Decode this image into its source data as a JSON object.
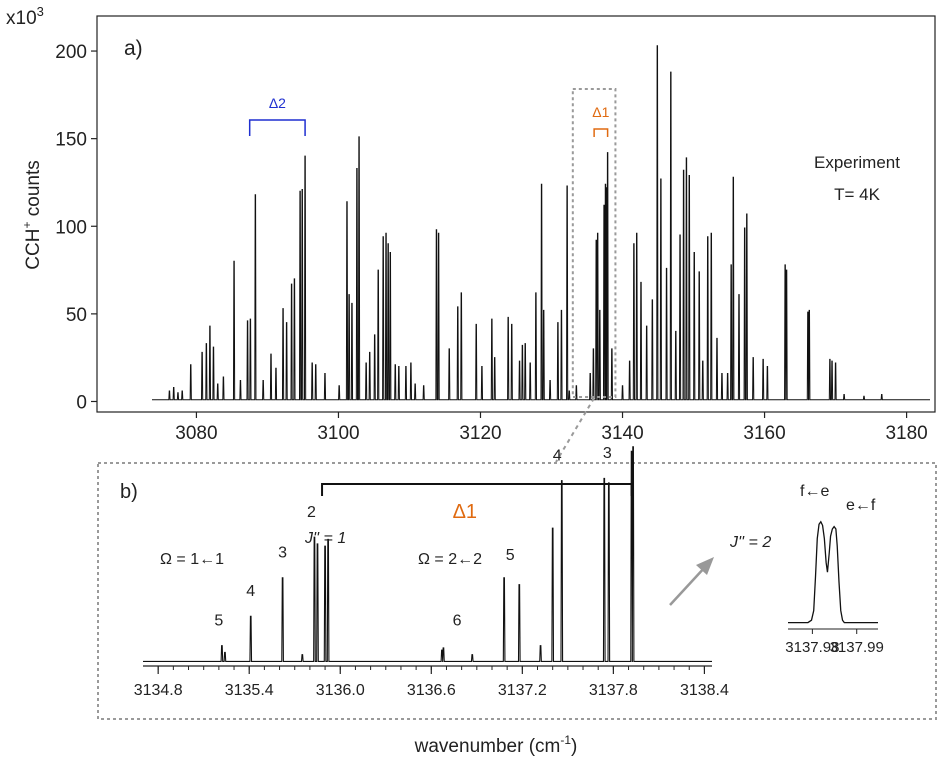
{
  "chart_data": [
    {
      "type": "line",
      "panel_label": "a)",
      "exponent_label": "x10",
      "exponent_sup": "3",
      "ylabel_main": "CCH",
      "ylabel_sup": "+",
      "ylabel_rest": " counts",
      "annotation_line1": "Experiment",
      "annotation_line2": "T= 4K",
      "delta2_label": "Δ2",
      "delta1_label": "Δ1",
      "delta2_range": [
        3087.5,
        3095.3
      ],
      "delta1_range": [
        3136.0,
        3137.9
      ],
      "zoom_box_range": [
        3133.0,
        3139.0
      ],
      "xlim": [
        3066,
        3184
      ],
      "ylim": [
        -6,
        220
      ],
      "xticks": [
        3080,
        3100,
        3120,
        3140,
        3160,
        3180
      ],
      "yticks": [
        0,
        50,
        100,
        150,
        200
      ],
      "baseline": 1,
      "peaks": [
        [
          3076.2,
          6
        ],
        [
          3076.8,
          8
        ],
        [
          3077.4,
          5
        ],
        [
          3078.0,
          6
        ],
        [
          3079.2,
          21
        ],
        [
          3080.8,
          28
        ],
        [
          3081.4,
          33
        ],
        [
          3081.9,
          43
        ],
        [
          3082.4,
          31
        ],
        [
          3083.0,
          10
        ],
        [
          3083.8,
          14
        ],
        [
          3085.3,
          80
        ],
        [
          3086.2,
          12
        ],
        [
          3087.2,
          46
        ],
        [
          3087.6,
          47
        ],
        [
          3088.3,
          118
        ],
        [
          3089.4,
          12
        ],
        [
          3090.5,
          27
        ],
        [
          3091.2,
          19
        ],
        [
          3092.2,
          53
        ],
        [
          3092.7,
          45
        ],
        [
          3093.4,
          67
        ],
        [
          3093.8,
          70
        ],
        [
          3094.6,
          120
        ],
        [
          3094.9,
          121
        ],
        [
          3095.3,
          140
        ],
        [
          3096.3,
          22
        ],
        [
          3096.8,
          21
        ],
        [
          3098.1,
          16
        ],
        [
          3100.1,
          9
        ],
        [
          3101.2,
          114
        ],
        [
          3101.5,
          61
        ],
        [
          3101.9,
          56
        ],
        [
          3102.6,
          133
        ],
        [
          3102.9,
          151
        ],
        [
          3103.9,
          22
        ],
        [
          3104.4,
          28
        ],
        [
          3105.1,
          38
        ],
        [
          3105.6,
          75
        ],
        [
          3106.3,
          94
        ],
        [
          3106.7,
          96
        ],
        [
          3107.0,
          90
        ],
        [
          3107.3,
          85
        ],
        [
          3108.0,
          21
        ],
        [
          3108.5,
          20
        ],
        [
          3109.5,
          20
        ],
        [
          3110.2,
          22
        ],
        [
          3110.8,
          10
        ],
        [
          3112.0,
          9
        ],
        [
          3113.8,
          98
        ],
        [
          3114.1,
          96
        ],
        [
          3115.6,
          30
        ],
        [
          3116.8,
          54
        ],
        [
          3117.3,
          62
        ],
        [
          3119.4,
          44
        ],
        [
          3120.2,
          20
        ],
        [
          3121.6,
          47
        ],
        [
          3122.0,
          25
        ],
        [
          3123.9,
          48
        ],
        [
          3124.4,
          44
        ],
        [
          3125.5,
          23
        ],
        [
          3125.9,
          32
        ],
        [
          3126.3,
          33
        ],
        [
          3127.0,
          22
        ],
        [
          3127.8,
          62
        ],
        [
          3128.6,
          124
        ],
        [
          3128.9,
          52
        ],
        [
          3129.8,
          12
        ],
        [
          3130.9,
          45
        ],
        [
          3131.4,
          52
        ],
        [
          3132.2,
          123
        ],
        [
          3132.5,
          6
        ],
        [
          3133.5,
          9
        ],
        [
          3135.45,
          16
        ],
        [
          3135.9,
          30
        ],
        [
          3136.3,
          92
        ],
        [
          3136.5,
          96
        ],
        [
          3136.8,
          52
        ],
        [
          3137.4,
          112
        ],
        [
          3137.6,
          124
        ],
        [
          3137.7,
          122
        ],
        [
          3137.9,
          142
        ],
        [
          3138.5,
          30
        ],
        [
          3140.0,
          9
        ],
        [
          3141.0,
          23
        ],
        [
          3141.6,
          90
        ],
        [
          3142.0,
          96
        ],
        [
          3142.6,
          68
        ],
        [
          3143.4,
          43
        ],
        [
          3144.2,
          58
        ],
        [
          3144.9,
          203
        ],
        [
          3145.4,
          127
        ],
        [
          3146.2,
          76
        ],
        [
          3146.8,
          188
        ],
        [
          3147.5,
          40
        ],
        [
          3148.1,
          95
        ],
        [
          3148.6,
          132
        ],
        [
          3149.0,
          139
        ],
        [
          3149.4,
          129
        ],
        [
          3150.1,
          85
        ],
        [
          3150.8,
          74
        ],
        [
          3151.3,
          23
        ],
        [
          3152.0,
          94
        ],
        [
          3152.5,
          96
        ],
        [
          3153.3,
          36
        ],
        [
          3154.0,
          16
        ],
        [
          3154.8,
          16
        ],
        [
          3155.3,
          78
        ],
        [
          3155.6,
          128
        ],
        [
          3156.4,
          61
        ],
        [
          3157.2,
          99
        ],
        [
          3157.5,
          107
        ],
        [
          3158.4,
          25
        ],
        [
          3159.8,
          24
        ],
        [
          3160.4,
          20
        ],
        [
          3162.9,
          78
        ],
        [
          3163.1,
          75
        ],
        [
          3166.1,
          51
        ],
        [
          3166.3,
          52
        ],
        [
          3169.2,
          24
        ],
        [
          3169.5,
          23
        ],
        [
          3170.0,
          22
        ],
        [
          3171.2,
          4
        ],
        [
          3174.0,
          3
        ],
        [
          3176.5,
          4
        ]
      ]
    },
    {
      "type": "line",
      "panel_label": "b)",
      "delta1_label": "Δ1",
      "bracket_range": [
        3135.88,
        3137.92
      ],
      "omega1_label": "Ω = 1←1",
      "omega2_label": "Ω = 2←2",
      "jpp1_label": "J'' = 1",
      "jpp2_label": "J'' = 2",
      "xlim": [
        3134.7,
        3138.45
      ],
      "ylim": [
        0,
        100
      ],
      "xticks": [
        "3134.8",
        "3135.4",
        "3136.0",
        "3136.6",
        "3137.2",
        "3137.8",
        "3138.4"
      ],
      "xtick_values": [
        3134.8,
        3135.4,
        3136.0,
        3136.6,
        3137.2,
        3137.8,
        3138.4
      ],
      "xlabel": "wavenumber",
      "xlabel_units": "(cm",
      "xlabel_exp": "-1",
      "xlabel_close": ")",
      "baseline": 2,
      "peaks": [
        [
          3135.22,
          9
        ],
        [
          3135.24,
          6
        ],
        [
          3135.41,
          22
        ],
        [
          3135.62,
          39
        ],
        [
          3135.75,
          5
        ],
        [
          3135.83,
          57
        ],
        [
          3135.85,
          54
        ],
        [
          3135.9,
          53
        ],
        [
          3135.92,
          56
        ],
        [
          3136.67,
          7
        ],
        [
          3136.68,
          8
        ],
        [
          3136.87,
          5
        ],
        [
          3137.08,
          39
        ],
        [
          3137.18,
          36
        ],
        [
          3137.32,
          9
        ],
        [
          3137.4,
          61
        ],
        [
          3137.46,
          82
        ],
        [
          3137.74,
          83
        ],
        [
          3137.77,
          81
        ],
        [
          3137.92,
          95
        ],
        [
          3137.93,
          97
        ]
      ],
      "peak_labels": [
        {
          "text": "5",
          "x": 3135.2,
          "y": 18
        },
        {
          "text": "4",
          "x": 3135.41,
          "y": 31
        },
        {
          "text": "3",
          "x": 3135.62,
          "y": 48
        },
        {
          "text": "2",
          "x": 3135.81,
          "y": 66
        },
        {
          "text": "6",
          "x": 3136.77,
          "y": 18
        },
        {
          "text": "5",
          "x": 3137.12,
          "y": 47
        },
        {
          "text": "4",
          "x": 3137.43,
          "y": 91
        },
        {
          "text": "3",
          "x": 3137.76,
          "y": 92
        }
      ]
    },
    {
      "type": "line",
      "label_fe": "f←e",
      "label_ef": "e←f",
      "xticks": [
        "3137.98",
        "3137.99"
      ],
      "xtick_values": [
        3137.98,
        3137.99
      ],
      "xlim": [
        3137.9745,
        3137.9948
      ],
      "ylim": [
        0,
        100
      ],
      "profile": [
        [
          3137.9745,
          2
        ],
        [
          3137.979,
          2
        ],
        [
          3137.9798,
          4
        ],
        [
          3137.9803,
          12
        ],
        [
          3137.9807,
          40
        ],
        [
          3137.9811,
          72
        ],
        [
          3137.9815,
          84
        ],
        [
          3137.9819,
          86
        ],
        [
          3137.9823,
          83
        ],
        [
          3137.9827,
          72
        ],
        [
          3137.9831,
          52
        ],
        [
          3137.9834,
          44
        ],
        [
          3137.9838,
          60
        ],
        [
          3137.9841,
          74
        ],
        [
          3137.9845,
          80
        ],
        [
          3137.9849,
          82
        ],
        [
          3137.9853,
          80
        ],
        [
          3137.9856,
          66
        ],
        [
          3137.986,
          36
        ],
        [
          3137.9864,
          12
        ],
        [
          3137.9868,
          4
        ],
        [
          3137.9872,
          2
        ],
        [
          3137.9948,
          2
        ]
      ]
    }
  ]
}
